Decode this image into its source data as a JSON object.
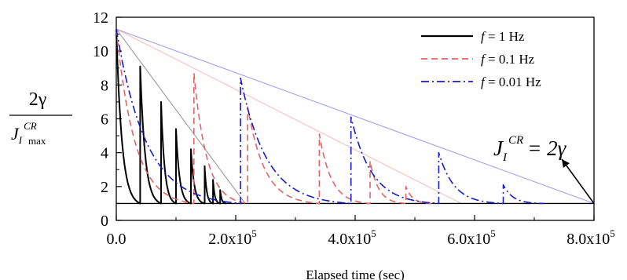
{
  "chart_data": {
    "type": "line",
    "xlabel": "Elapsed time (sec)",
    "ylabel": {
      "numerator": "2γ",
      "denominator_main": "J",
      "denominator_sub": "I",
      "denominator_sup": "CR",
      "denominator_subscript2": "max"
    },
    "xlim": [
      0,
      800000
    ],
    "ylim": [
      0,
      12
    ],
    "x_ticks": [
      {
        "value": 0,
        "label": "0.0"
      },
      {
        "value": 200000,
        "label": "2.0x10",
        "exp": "5"
      },
      {
        "value": 400000,
        "label": "4.0x10",
        "exp": "5"
      },
      {
        "value": 600000,
        "label": "6.0x10",
        "exp": "5"
      },
      {
        "value": 800000,
        "label": "8.0x10",
        "exp": "5"
      }
    ],
    "y_ticks": [
      0,
      2,
      4,
      6,
      8,
      10,
      12
    ],
    "threshold": {
      "value": 1,
      "annotation": {
        "main": "J",
        "sub": "I",
        "sup": "CR",
        "rhs": "= 2γ"
      }
    },
    "series": [
      {
        "name": "f = 1 Hz",
        "name_f": "f",
        "name_rest": "= 1 Hz",
        "color": "#000000",
        "dash": "",
        "envelope": [
          [
            0,
            11.3
          ],
          [
            216000,
            1
          ]
        ],
        "cycles": [
          {
            "start": 0,
            "peak": 11.3,
            "end": 40000
          },
          {
            "start": 40000,
            "peak": 9.1,
            "end": 75000
          },
          {
            "start": 75000,
            "peak": 7.0,
            "end": 100000
          },
          {
            "start": 100000,
            "peak": 5.4,
            "end": 125000
          },
          {
            "start": 125000,
            "peak": 4.2,
            "end": 148000
          },
          {
            "start": 148000,
            "peak": 3.2,
            "end": 162000
          },
          {
            "start": 162000,
            "peak": 2.4,
            "end": 174000
          },
          {
            "start": 174000,
            "peak": 1.8,
            "end": 184000
          }
        ]
      },
      {
        "name": "f = 0.1 Hz",
        "name_f": "f",
        "name_rest": "= 0.1 Hz",
        "color": "#e06666",
        "dash": "8,5",
        "envelope": [
          [
            0,
            11.3
          ],
          [
            578000,
            1
          ]
        ],
        "cycles": [
          {
            "start": 0,
            "peak": 11.3,
            "end": 130000
          },
          {
            "start": 130000,
            "peak": 8.7,
            "end": 220000
          },
          {
            "start": 220000,
            "peak": 6.7,
            "end": 340000
          },
          {
            "start": 340000,
            "peak": 5.1,
            "end": 425000
          },
          {
            "start": 425000,
            "peak": 3.5,
            "end": 485000
          },
          {
            "start": 485000,
            "peak": 2.0,
            "end": 530000
          }
        ]
      },
      {
        "name": "f = 0.01 Hz",
        "name_f": "f",
        "name_rest": "= 0.01 Hz",
        "color": "#1a1acc",
        "dash": "10,4,2,4",
        "envelope": [
          [
            0,
            11.3
          ],
          [
            800000,
            1
          ]
        ],
        "cycles": [
          {
            "start": 0,
            "peak": 11.3,
            "end": 208000
          },
          {
            "start": 208000,
            "peak": 8.4,
            "end": 393000
          },
          {
            "start": 393000,
            "peak": 6.1,
            "end": 540000
          },
          {
            "start": 540000,
            "peak": 4.0,
            "end": 648000
          },
          {
            "start": 648000,
            "peak": 2.1,
            "end": 715000
          }
        ]
      }
    ],
    "legend_placement": "top-right",
    "grid": false
  }
}
